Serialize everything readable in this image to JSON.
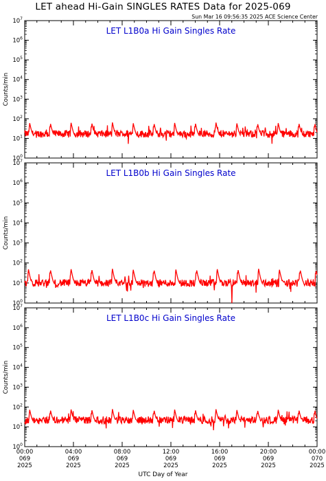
{
  "title": "LET ahead Hi-Gain SINGLES RATES Data for 2025-069",
  "timestamp": "Sun Mar 16 09:56:35 2025 ACE Science Center",
  "x_axis_label": "UTC Day of Year",
  "x_ticks": [
    {
      "hour": 0,
      "time": "00:00",
      "day": "069",
      "year": "2025"
    },
    {
      "hour": 4,
      "time": "04:00",
      "day": "069",
      "year": "2025"
    },
    {
      "hour": 8,
      "time": "08:00",
      "day": "069",
      "year": "2025"
    },
    {
      "hour": 12,
      "time": "12:00",
      "day": "069",
      "year": "2025"
    },
    {
      "hour": 16,
      "time": "16:00",
      "day": "069",
      "year": "2025"
    },
    {
      "hour": 20,
      "time": "20:00",
      "day": "069",
      "year": "2025"
    },
    {
      "hour": 24,
      "time": "00:00",
      "day": "070",
      "year": "2025"
    }
  ],
  "colors": {
    "data_line": "#ff0000",
    "panel_title": "#0000cc",
    "axes": "#000000"
  },
  "chart_data": [
    {
      "type": "line",
      "title": "LET L1B0a Hi Gain Singles Rate",
      "ylabel": "Counts/min",
      "yscale": "log",
      "ylim": [
        1,
        10000000
      ],
      "y_tick_exponents": [
        0,
        1,
        2,
        3,
        4,
        5,
        6,
        7
      ],
      "xlim_hours": [
        0,
        24
      ],
      "series": [
        {
          "baseline": 17,
          "spike_peak": 55,
          "spike_times_hours": [
            0.4,
            2.1,
            3.8,
            5.5,
            7.2,
            8.9,
            10.6,
            12.3,
            14.0,
            15.7,
            17.4,
            19.1,
            20.8,
            22.5,
            23.8
          ],
          "x_hours": [
            0,
            2,
            4,
            6,
            8,
            10,
            12,
            14,
            16,
            18,
            20,
            22,
            24
          ],
          "values": [
            17,
            16,
            18,
            15,
            17,
            16,
            18,
            17,
            16,
            18,
            17,
            16,
            17
          ]
        }
      ]
    },
    {
      "type": "line",
      "title": "LET L1B0b Hi Gain Singles Rate",
      "ylabel": "Counts/min",
      "yscale": "log",
      "ylim": [
        1,
        10000000
      ],
      "y_tick_exponents": [
        0,
        1,
        2,
        3,
        4,
        5,
        6,
        7
      ],
      "xlim_hours": [
        0,
        24
      ],
      "series": [
        {
          "baseline": 10,
          "spike_peak": 45,
          "spike_times_hours": [
            0.3,
            2.1,
            3.8,
            5.5,
            7.2,
            8.9,
            10.6,
            12.4,
            14.1,
            15.8,
            17.5,
            19.2,
            20.9,
            22.6,
            23.9
          ],
          "dropout_hours": [
            17.0
          ],
          "x_hours": [
            0,
            2,
            4,
            6,
            8,
            10,
            12,
            14,
            16,
            18,
            20,
            22,
            24
          ],
          "values": [
            10,
            9,
            10,
            11,
            10,
            10,
            9,
            10,
            11,
            10,
            9,
            10,
            10
          ]
        }
      ]
    },
    {
      "type": "line",
      "title": "LET L1B0c Hi Gain Singles Rate",
      "ylabel": "Counts/min",
      "yscale": "log",
      "ylim": [
        1,
        10000000
      ],
      "y_tick_exponents": [
        0,
        1,
        2,
        3,
        4,
        5,
        6,
        7
      ],
      "xlim_hours": [
        0,
        24
      ],
      "series": [
        {
          "baseline": 22,
          "spike_peak": 65,
          "spike_times_hours": [
            0.4,
            2.1,
            3.8,
            5.5,
            7.2,
            8.9,
            10.6,
            12.3,
            14.0,
            15.7,
            17.4,
            19.1,
            20.8,
            22.5,
            23.8
          ],
          "x_hours": [
            0,
            2,
            4,
            6,
            8,
            10,
            12,
            14,
            16,
            18,
            20,
            22,
            24
          ],
          "values": [
            22,
            21,
            23,
            22,
            20,
            22,
            23,
            21,
            22,
            23,
            22,
            21,
            22
          ]
        }
      ]
    }
  ]
}
